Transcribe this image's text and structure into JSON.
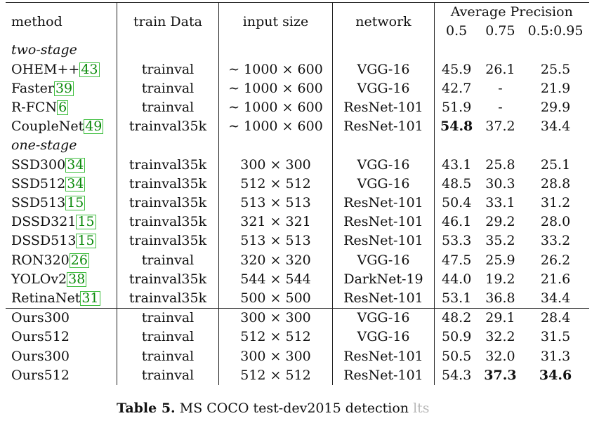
{
  "header": {
    "method": "method",
    "train_data": "train Data",
    "input_size": "input size",
    "network": "network",
    "ap_group": "Average Precision",
    "ap_cols": [
      "0.5",
      "0.75",
      "0.5:0.95"
    ]
  },
  "sections": {
    "two_stage": "two-stage",
    "one_stage": "one-stage"
  },
  "rows": [
    {
      "method": "OHEM++",
      "cite": "43",
      "train": "trainval",
      "input": "∼ 1000 × 600",
      "network": "VGG-16",
      "ap50": "45.9",
      "ap75": "26.1",
      "ap": "25.5"
    },
    {
      "method": "Faster",
      "cite": "39",
      "train": "trainval",
      "input": "∼ 1000 × 600",
      "network": "VGG-16",
      "ap50": "42.7",
      "ap75": "-",
      "ap": "21.9"
    },
    {
      "method": "R-FCN",
      "cite": "6",
      "train": "trainval",
      "input": "∼ 1000 × 600",
      "network": "ResNet-101",
      "ap50": "51.9",
      "ap75": "-",
      "ap": "29.9"
    },
    {
      "method": "CoupleNet",
      "cite": "49",
      "train": "trainval35k",
      "input": "∼ 1000 × 600",
      "network": "ResNet-101",
      "ap50": "54.8",
      "ap75": "37.2",
      "ap": "34.4"
    },
    {
      "method": "SSD300",
      "cite": "34",
      "train": "trainval35k",
      "input": "300 × 300",
      "network": "VGG-16",
      "ap50": "43.1",
      "ap75": "25.8",
      "ap": "25.1"
    },
    {
      "method": "SSD512",
      "cite": "34",
      "train": "trainval35k",
      "input": "512 × 512",
      "network": "VGG-16",
      "ap50": "48.5",
      "ap75": "30.3",
      "ap": "28.8"
    },
    {
      "method": "SSD513",
      "cite": "15",
      "train": "trainval35k",
      "input": "513 × 513",
      "network": "ResNet-101",
      "ap50": "50.4",
      "ap75": "33.1",
      "ap": "31.2"
    },
    {
      "method": "DSSD321",
      "cite": "15",
      "train": "trainval35k",
      "input": "321 × 321",
      "network": "ResNet-101",
      "ap50": "46.1",
      "ap75": "29.2",
      "ap": "28.0"
    },
    {
      "method": "DSSD513",
      "cite": "15",
      "train": "trainval35k",
      "input": "513 × 513",
      "network": "ResNet-101",
      "ap50": "53.3",
      "ap75": "35.2",
      "ap": "33.2"
    },
    {
      "method": "RON320",
      "cite": "26",
      "train": "trainval",
      "input": "320 × 320",
      "network": "VGG-16",
      "ap50": "47.5",
      "ap75": "25.9",
      "ap": "26.2"
    },
    {
      "method": "YOLOv2",
      "cite": "38",
      "train": "trainval35k",
      "input": "544 × 544",
      "network": "DarkNet-19",
      "ap50": "44.0",
      "ap75": "19.2",
      "ap": "21.6"
    },
    {
      "method": "RetinaNet",
      "cite": "31",
      "train": "trainval35k",
      "input": "500 × 500",
      "network": "ResNet-101",
      "ap50": "53.1",
      "ap75": "36.8",
      "ap": "34.4"
    },
    {
      "method": "Ours300",
      "train": "trainval",
      "input": "300 × 300",
      "network": "VGG-16",
      "ap50": "48.2",
      "ap75": "29.1",
      "ap": "28.4"
    },
    {
      "method": "Ours512",
      "train": "trainval",
      "input": "512 × 512",
      "network": "VGG-16",
      "ap50": "50.9",
      "ap75": "32.2",
      "ap": "31.5"
    },
    {
      "method": "Ours300",
      "train": "trainval",
      "input": "300 × 300",
      "network": "ResNet-101",
      "ap50": "50.5",
      "ap75": "32.0",
      "ap": "31.3"
    },
    {
      "method": "Ours512",
      "train": "trainval",
      "input": "512 × 512",
      "network": "ResNet-101",
      "ap50": "54.3",
      "ap75": "37.3",
      "ap": "34.6"
    }
  ],
  "caption": {
    "label": "Table 5.",
    "text": "MS COCO test-dev2015 detection",
    "faded": "lts"
  }
}
